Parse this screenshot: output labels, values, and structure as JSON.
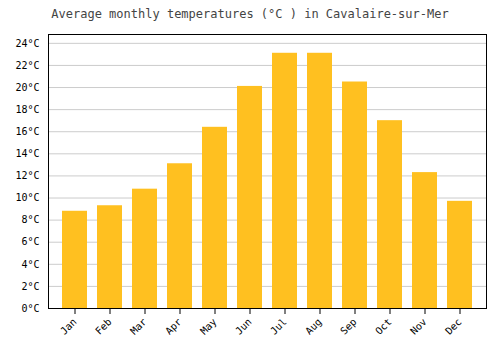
{
  "chart_data": {
    "type": "bar",
    "title": "Average monthly temperatures (°C ) in Cavalaire-sur-Mer",
    "categories": [
      "Jan",
      "Feb",
      "Mar",
      "Apr",
      "May",
      "Jun",
      "Jul",
      "Aug",
      "Sep",
      "Oct",
      "Nov",
      "Dec"
    ],
    "values": [
      8.8,
      9.3,
      10.8,
      13.1,
      16.4,
      20.1,
      23.1,
      23.1,
      20.5,
      17.0,
      12.3,
      9.7
    ],
    "color": "#FFC020",
    "ylim": [
      0,
      24.8
    ],
    "yticks": [
      {
        "value": 0,
        "label": "0°C"
      },
      {
        "value": 2,
        "label": "2°C"
      },
      {
        "value": 4,
        "label": "4°C"
      },
      {
        "value": 6,
        "label": "6°C"
      },
      {
        "value": 8,
        "label": "8°C"
      },
      {
        "value": 10,
        "label": "10°C"
      },
      {
        "value": 12,
        "label": "12°C"
      },
      {
        "value": 14,
        "label": "14°C"
      },
      {
        "value": 16,
        "label": "16°C"
      },
      {
        "value": 18,
        "label": "18°C"
      },
      {
        "value": 20,
        "label": "20°C"
      },
      {
        "value": 22,
        "label": "22°C"
      },
      {
        "value": 24,
        "label": "24°C"
      }
    ],
    "grid": true
  }
}
